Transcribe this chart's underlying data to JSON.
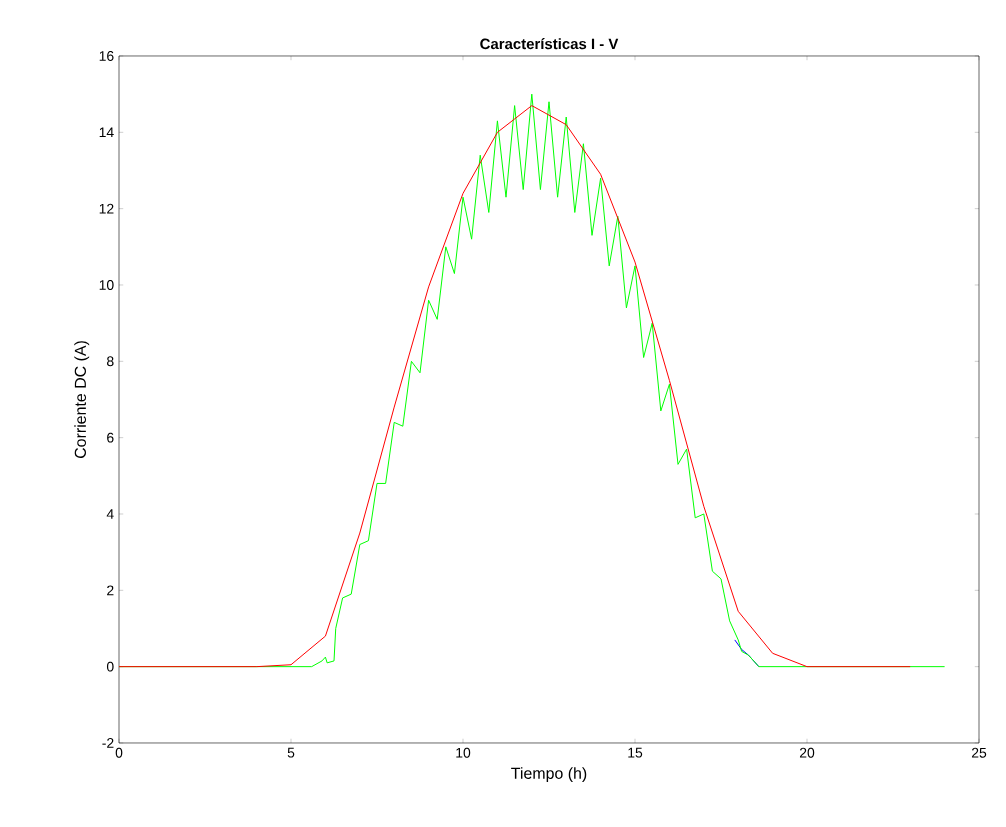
{
  "chart_data": {
    "type": "line",
    "title": "Características I - V",
    "xlabel": "Tiempo (h)",
    "ylabel": "Corriente DC (A)",
    "xlim": [
      0,
      25
    ],
    "xticks": [
      0,
      5,
      10,
      15,
      20,
      25
    ],
    "ylim": [
      -2,
      16
    ],
    "yticks": [
      -2,
      0,
      2,
      4,
      6,
      8,
      10,
      12,
      14,
      16
    ],
    "grid": false,
    "marker": "none",
    "line_style": "solid",
    "series": [
      {
        "color": "#0000ff",
        "x": [
          17.9,
          18.1,
          18.3,
          18.6
        ],
        "values": [
          0.7,
          0.45,
          0.3,
          0.0
        ]
      },
      {
        "color": "#00ff00",
        "x": [
          0,
          5.6,
          5.9,
          6.0,
          6.05,
          6.25,
          6.3,
          6.5,
          6.75,
          7.0,
          7.25,
          7.5,
          7.75,
          8,
          8.25,
          8.5,
          8.75,
          9,
          9.25,
          9.5,
          9.75,
          10,
          10.25,
          10.5,
          10.75,
          11,
          11.25,
          11.5,
          11.75,
          12,
          12.25,
          12.5,
          12.75,
          13,
          13.25,
          13.5,
          13.75,
          14,
          14.25,
          14.5,
          14.75,
          15,
          15.25,
          15.5,
          15.75,
          16,
          16.25,
          16.5,
          16.75,
          17,
          17.25,
          17.5,
          17.75,
          18,
          18.1,
          18.3,
          18.6,
          24
        ],
        "values": [
          0,
          0,
          0.15,
          0.25,
          0.1,
          0.15,
          1.0,
          1.8,
          1.9,
          3.2,
          3.3,
          4.8,
          4.8,
          6.4,
          6.3,
          8.0,
          7.7,
          9.6,
          9.1,
          11.0,
          10.3,
          12.3,
          11.2,
          13.4,
          11.9,
          14.3,
          12.3,
          14.7,
          12.5,
          15.0,
          12.5,
          14.8,
          12.3,
          14.4,
          11.9,
          13.7,
          11.3,
          12.8,
          10.5,
          11.8,
          9.4,
          10.5,
          8.1,
          9.0,
          6.7,
          7.4,
          5.3,
          5.7,
          3.9,
          4.0,
          2.5,
          2.3,
          1.2,
          0.7,
          0.4,
          0.3,
          0,
          0
        ]
      },
      {
        "color": "#ff0000",
        "x": [
          0,
          1,
          2,
          3,
          4,
          5,
          6,
          7,
          8,
          9,
          10,
          11,
          12,
          13,
          14,
          15,
          16,
          17,
          18,
          19,
          20,
          21,
          22,
          23
        ],
        "values": [
          0,
          0,
          0,
          0,
          0,
          0.05,
          0.8,
          3.5,
          6.8,
          9.95,
          12.4,
          14.0,
          14.7,
          14.2,
          12.9,
          10.6,
          7.5,
          4.2,
          1.45,
          0.35,
          0,
          0,
          0,
          0
        ]
      }
    ]
  }
}
